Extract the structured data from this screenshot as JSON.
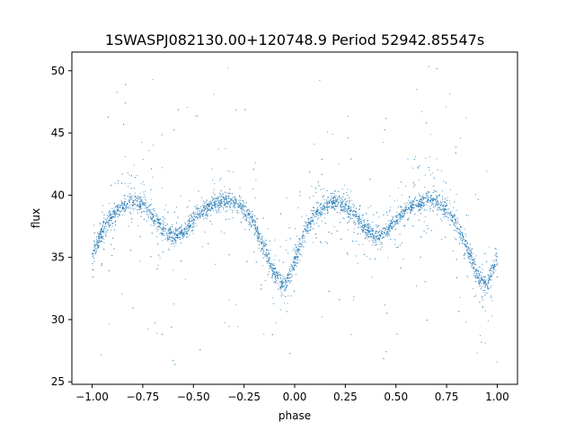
{
  "chart_data": {
    "type": "scatter",
    "title": "1SWASPJ082130.00+120748.9 Period 52942.85547s",
    "xlabel": "phase",
    "ylabel": "flux",
    "xlim": [
      -1.1,
      1.1
    ],
    "ylim": [
      24.8,
      51.5
    ],
    "x_ticks": [
      -1.0,
      -0.75,
      -0.5,
      -0.25,
      0.0,
      0.25,
      0.5,
      0.75,
      1.0
    ],
    "x_tick_labels": [
      "−1.00",
      "−0.75",
      "−0.50",
      "−0.25",
      "0.00",
      "0.25",
      "0.50",
      "0.75",
      "1.00"
    ],
    "y_ticks": [
      25,
      30,
      35,
      40,
      45,
      50
    ],
    "y_tick_labels": [
      "25",
      "30",
      "35",
      "40",
      "45",
      "50"
    ],
    "grid": false,
    "marker_color": "#1f77b4",
    "series": [
      {
        "x": [
          -1.0,
          -0.95,
          -0.9,
          -0.85,
          -0.8,
          -0.75,
          -0.7,
          -0.65,
          -0.6,
          -0.55,
          -0.5,
          -0.45,
          -0.4,
          -0.35,
          -0.3,
          -0.25,
          -0.2,
          -0.15,
          -0.1,
          -0.05,
          0.0,
          0.05,
          0.1,
          0.15,
          0.2,
          0.25,
          0.3,
          0.35,
          0.4,
          0.45,
          0.5,
          0.55,
          0.6,
          0.65,
          0.7,
          0.75,
          0.8,
          0.85,
          0.9,
          0.95,
          1.0
        ],
        "y": [
          35.0,
          37.2,
          38.4,
          39.1,
          39.5,
          39.3,
          38.4,
          37.3,
          36.6,
          37.0,
          38.0,
          38.8,
          39.3,
          39.6,
          39.5,
          38.9,
          37.7,
          35.8,
          33.6,
          32.6,
          34.6,
          37.2,
          38.4,
          39.1,
          39.5,
          39.3,
          38.4,
          37.3,
          36.6,
          37.0,
          38.0,
          38.8,
          39.3,
          39.6,
          39.5,
          38.9,
          37.7,
          35.8,
          33.6,
          32.6,
          35.0
        ]
      }
    ]
  }
}
